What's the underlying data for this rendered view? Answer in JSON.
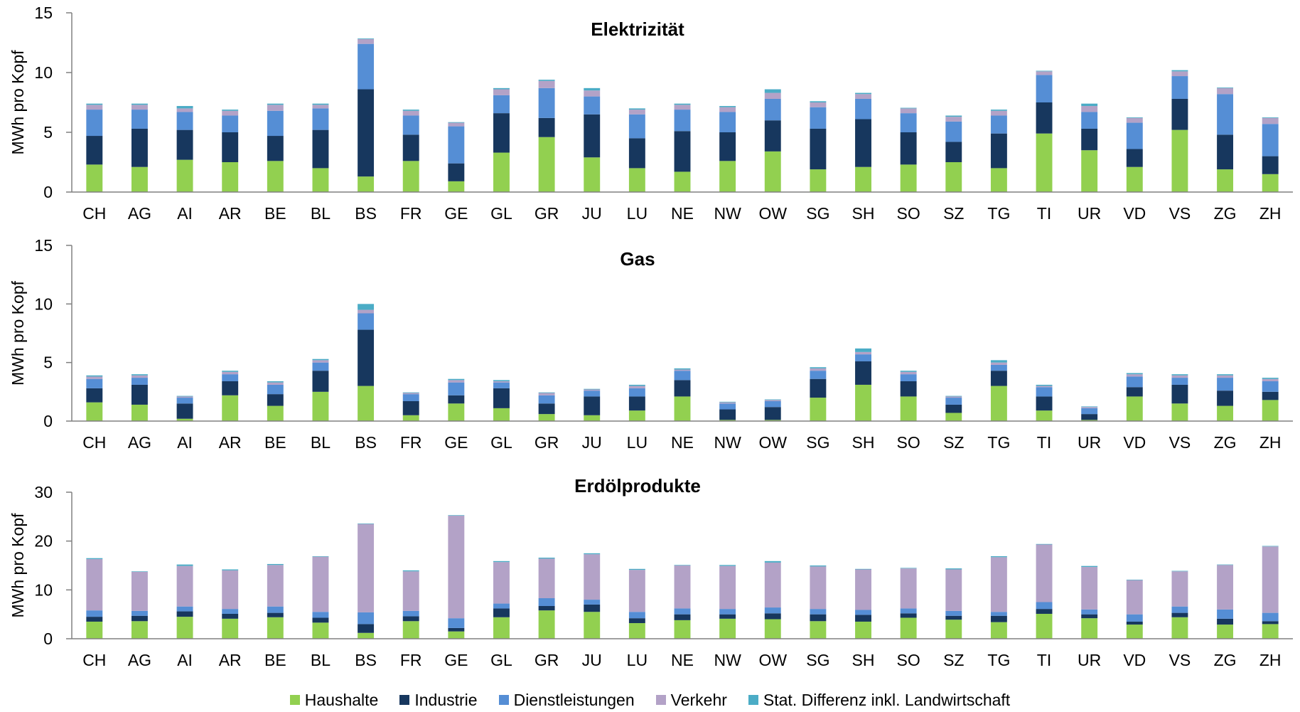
{
  "colors": {
    "Haushalte": "#92D050",
    "Industrie": "#17375E",
    "Dienstleistungen": "#558ED5",
    "Verkehr": "#B3A2C7",
    "Stat": "#4BACC6"
  },
  "legend": {
    "haushalte": "Haushalte",
    "industrie": "Industrie",
    "dienstleistungen": "Dienstleistungen",
    "verkehr": "Verkehr",
    "stat": "Stat. Differenz inkl. Landwirtschaft"
  },
  "chart_data": [
    {
      "type": "bar",
      "stacked": true,
      "title": "Elektrizität",
      "ylabel": "MWh pro Kopf",
      "ylim": [
        0,
        15
      ],
      "yticks": [
        0,
        5,
        10,
        15
      ],
      "categories": [
        "CH",
        "AG",
        "AI",
        "AR",
        "BE",
        "BL",
        "BS",
        "FR",
        "GE",
        "GL",
        "GR",
        "JU",
        "LU",
        "NE",
        "NW",
        "OW",
        "SG",
        "SH",
        "SO",
        "SZ",
        "TG",
        "TI",
        "UR",
        "VD",
        "VS",
        "ZG",
        "ZH"
      ],
      "series": [
        {
          "name": "Haushalte",
          "values": [
            2.3,
            2.1,
            2.7,
            2.5,
            2.6,
            2.0,
            1.3,
            2.6,
            0.9,
            3.3,
            4.6,
            2.9,
            2.0,
            1.7,
            2.6,
            3.4,
            1.9,
            2.1,
            2.3,
            2.5,
            2.0,
            4.9,
            3.5,
            2.1,
            5.2,
            1.9,
            1.5
          ]
        },
        {
          "name": "Industrie",
          "values": [
            2.4,
            3.2,
            2.5,
            2.5,
            2.1,
            3.2,
            7.3,
            2.2,
            1.5,
            3.3,
            1.6,
            3.6,
            2.5,
            3.4,
            2.4,
            2.6,
            3.4,
            4.0,
            2.7,
            1.7,
            2.9,
            2.6,
            1.8,
            1.5,
            2.6,
            2.9,
            1.5
          ]
        },
        {
          "name": "Dienstleistungen",
          "values": [
            2.2,
            1.6,
            1.5,
            1.4,
            2.1,
            1.8,
            3.8,
            1.6,
            3.1,
            1.5,
            2.5,
            1.5,
            2.0,
            1.8,
            1.7,
            1.8,
            1.8,
            1.7,
            1.6,
            1.7,
            1.5,
            2.3,
            1.4,
            2.2,
            1.9,
            3.4,
            2.7
          ]
        },
        {
          "name": "Verkehr",
          "values": [
            0.4,
            0.4,
            0.3,
            0.4,
            0.5,
            0.3,
            0.4,
            0.4,
            0.3,
            0.5,
            0.6,
            0.5,
            0.4,
            0.4,
            0.4,
            0.5,
            0.4,
            0.4,
            0.4,
            0.4,
            0.4,
            0.3,
            0.5,
            0.4,
            0.4,
            0.5,
            0.5
          ]
        },
        {
          "name": "Stat. Differenz inkl. Landwirtschaft",
          "values": [
            0.1,
            0.1,
            0.2,
            0.1,
            0.1,
            0.1,
            0.05,
            0.1,
            0.05,
            0.1,
            0.1,
            0.2,
            0.1,
            0.1,
            0.1,
            0.3,
            0.1,
            0.1,
            0.05,
            0.1,
            0.1,
            0.05,
            0.2,
            0.05,
            0.1,
            0.05,
            0.05
          ]
        }
      ]
    },
    {
      "type": "bar",
      "stacked": true,
      "title": "Gas",
      "ylabel": "MWh pro Kopf",
      "ylim": [
        0,
        15
      ],
      "yticks": [
        0,
        5,
        10,
        15
      ],
      "categories": [
        "CH",
        "AG",
        "AI",
        "AR",
        "BE",
        "BL",
        "BS",
        "FR",
        "GE",
        "GL",
        "GR",
        "JU",
        "LU",
        "NE",
        "NW",
        "OW",
        "SG",
        "SH",
        "SO",
        "SZ",
        "TG",
        "TI",
        "UR",
        "VD",
        "VS",
        "ZG",
        "ZH"
      ],
      "series": [
        {
          "name": "Haushalte",
          "values": [
            1.6,
            1.4,
            0.2,
            2.2,
            1.3,
            2.5,
            3.0,
            0.5,
            1.5,
            1.1,
            0.6,
            0.5,
            0.9,
            2.1,
            0.1,
            0.1,
            2.0,
            3.1,
            2.1,
            0.7,
            3.0,
            0.9,
            0.1,
            2.1,
            1.5,
            1.3,
            1.8
          ]
        },
        {
          "name": "Industrie",
          "values": [
            1.2,
            1.7,
            1.3,
            1.2,
            1.0,
            1.8,
            4.8,
            1.2,
            0.7,
            1.7,
            0.9,
            1.6,
            1.2,
            1.4,
            0.9,
            1.1,
            1.6,
            2.0,
            1.3,
            0.7,
            1.3,
            1.2,
            0.5,
            0.8,
            1.6,
            1.3,
            0.7
          ]
        },
        {
          "name": "Dienstleistungen",
          "values": [
            0.8,
            0.6,
            0.5,
            0.6,
            0.8,
            0.7,
            1.4,
            0.6,
            1.1,
            0.5,
            0.7,
            0.5,
            0.7,
            0.8,
            0.5,
            0.5,
            0.7,
            0.6,
            0.6,
            0.6,
            0.5,
            0.8,
            0.5,
            0.9,
            0.6,
            1.1,
            0.9
          ]
        },
        {
          "name": "Verkehr",
          "values": [
            0.2,
            0.2,
            0.1,
            0.2,
            0.2,
            0.2,
            0.3,
            0.1,
            0.2,
            0.1,
            0.2,
            0.1,
            0.2,
            0.1,
            0.1,
            0.1,
            0.2,
            0.2,
            0.2,
            0.1,
            0.2,
            0.1,
            0.1,
            0.2,
            0.2,
            0.2,
            0.2
          ]
        },
        {
          "name": "Stat. Differenz inkl. Landwirtschaft",
          "values": [
            0.1,
            0.1,
            0.05,
            0.1,
            0.1,
            0.1,
            0.5,
            0.05,
            0.1,
            0.1,
            0.05,
            0.05,
            0.1,
            0.1,
            0.05,
            0.05,
            0.1,
            0.3,
            0.1,
            0.05,
            0.2,
            0.1,
            0.05,
            0.1,
            0.1,
            0.1,
            0.1
          ]
        }
      ]
    },
    {
      "type": "bar",
      "stacked": true,
      "title": "Erdölprodukte",
      "ylabel": "MWh pro Kopf",
      "ylim": [
        0,
        30
      ],
      "yticks": [
        0,
        10,
        20,
        30
      ],
      "categories": [
        "CH",
        "AG",
        "AI",
        "AR",
        "BE",
        "BL",
        "BS",
        "FR",
        "GE",
        "GL",
        "GR",
        "JU",
        "LU",
        "NE",
        "NW",
        "OW",
        "SG",
        "SH",
        "SO",
        "SZ",
        "TG",
        "TI",
        "UR",
        "VD",
        "VS",
        "ZG",
        "ZH"
      ],
      "series": [
        {
          "name": "Haushalte",
          "values": [
            3.5,
            3.6,
            4.5,
            4.1,
            4.4,
            3.3,
            1.2,
            3.6,
            1.5,
            4.4,
            5.8,
            5.5,
            3.2,
            3.8,
            4.1,
            4.0,
            3.6,
            3.5,
            4.3,
            3.9,
            3.4,
            5.1,
            4.2,
            2.9,
            4.4,
            2.9,
            3.0
          ]
        },
        {
          "name": "Industrie",
          "values": [
            1.0,
            1.1,
            1.1,
            1.0,
            0.9,
            1.0,
            1.8,
            1.0,
            0.7,
            1.8,
            0.9,
            1.5,
            1.0,
            1.2,
            0.9,
            1.2,
            1.4,
            1.4,
            0.9,
            0.8,
            1.3,
            1.0,
            0.8,
            0.6,
            0.9,
            1.2,
            0.6
          ]
        },
        {
          "name": "Dienstleistungen",
          "values": [
            1.3,
            1.0,
            1.0,
            1.0,
            1.3,
            1.2,
            2.4,
            1.1,
            2.0,
            1.0,
            1.6,
            1.0,
            1.3,
            1.2,
            1.1,
            1.2,
            1.1,
            1.0,
            1.0,
            1.0,
            0.8,
            1.4,
            1.0,
            1.5,
            1.3,
            1.9,
            1.7
          ]
        },
        {
          "name": "Verkehr",
          "values": [
            10.5,
            8.0,
            8.3,
            7.9,
            8.5,
            11.3,
            18.1,
            8.1,
            21.0,
            8.5,
            8.1,
            9.3,
            8.6,
            8.8,
            8.8,
            9.2,
            8.7,
            8.3,
            8.2,
            8.5,
            11.2,
            11.8,
            8.7,
            7.0,
            7.2,
            9.1,
            13.6
          ]
        },
        {
          "name": "Stat. Differenz inkl. Landwirtschaft",
          "values": [
            0.2,
            0.1,
            0.3,
            0.2,
            0.2,
            0.1,
            0.1,
            0.2,
            0.1,
            0.2,
            0.2,
            0.2,
            0.2,
            0.1,
            0.2,
            0.3,
            0.2,
            0.1,
            0.1,
            0.2,
            0.2,
            0.1,
            0.2,
            0.1,
            0.1,
            0.1,
            0.1
          ]
        }
      ]
    }
  ]
}
